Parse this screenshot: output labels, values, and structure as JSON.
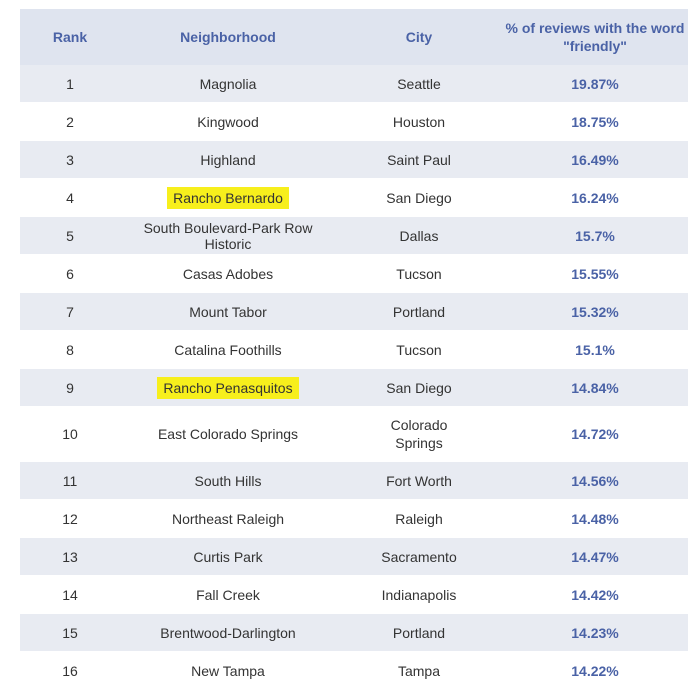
{
  "headers": {
    "rank": "Rank",
    "neighborhood": "Neighborhood",
    "city": "City",
    "pct_line1": "% of reviews with the word",
    "pct_line2": "\"friendly\""
  },
  "rows": [
    {
      "rank": "1",
      "neighborhood": "Magnolia",
      "city": "Seattle",
      "pct": "19.87%"
    },
    {
      "rank": "2",
      "neighborhood": "Kingwood",
      "city": "Houston",
      "pct": "18.75%"
    },
    {
      "rank": "3",
      "neighborhood": "Highland",
      "city": "Saint Paul",
      "pct": "16.49%"
    },
    {
      "rank": "4",
      "neighborhood": "Rancho Bernardo",
      "city": "San Diego",
      "pct": "16.24%"
    },
    {
      "rank": "5",
      "neighborhood": "South Boulevard-Park Row Historic",
      "city": "Dallas",
      "pct": "15.7%"
    },
    {
      "rank": "6",
      "neighborhood": "Casas Adobes",
      "city": "Tucson",
      "pct": "15.55%"
    },
    {
      "rank": "7",
      "neighborhood": "Mount Tabor",
      "city": "Portland",
      "pct": "15.32%"
    },
    {
      "rank": "8",
      "neighborhood": "Catalina Foothills",
      "city": "Tucson",
      "pct": "15.1%"
    },
    {
      "rank": "9",
      "neighborhood": "Rancho Penasquitos",
      "city": "San Diego",
      "pct": "14.84%"
    },
    {
      "rank": "10",
      "neighborhood": "East Colorado Springs",
      "city_line1": "Colorado",
      "city_line2": "Springs",
      "pct": "14.72%"
    },
    {
      "rank": "11",
      "neighborhood": "South Hills",
      "city": "Fort Worth",
      "pct": "14.56%"
    },
    {
      "rank": "12",
      "neighborhood": "Northeast Raleigh",
      "city": "Raleigh",
      "pct": "14.48%"
    },
    {
      "rank": "13",
      "neighborhood": "Curtis Park",
      "city": "Sacramento",
      "pct": "14.47%"
    },
    {
      "rank": "14",
      "neighborhood": "Fall Creek",
      "city": "Indianapolis",
      "pct": "14.42%"
    },
    {
      "rank": "15",
      "neighborhood": "Brentwood-Darlington",
      "city": "Portland",
      "pct": "14.23%"
    },
    {
      "rank": "16",
      "neighborhood": "New Tampa",
      "city": "Tampa",
      "pct": "14.22%"
    }
  ],
  "colors": {
    "header_bg": "#dfe4ef",
    "header_text": "#4a62a6",
    "stripe_bg": "#e8ebf2",
    "highlight": "#f7ef1c"
  }
}
